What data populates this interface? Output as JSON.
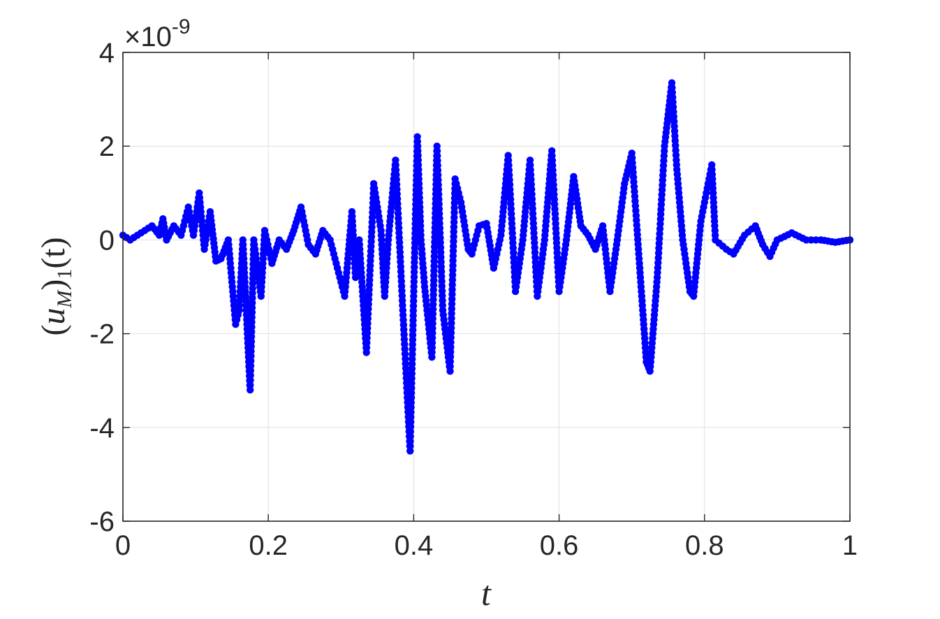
{
  "chart_data": {
    "type": "scatter",
    "xlabel": "t",
    "ylabel": "(u_M)_1(t)",
    "ylabel_parts": {
      "open": "(",
      "var": "u",
      "sub": "M",
      "close": ")",
      "sub2": "1",
      "arg": "(t)"
    },
    "exponent_label": {
      "times": "×",
      "base": "10",
      "power": "-9"
    },
    "xlim": [
      0,
      1
    ],
    "ylim": [
      -6,
      4
    ],
    "x_ticks": [
      0,
      0.2,
      0.4,
      0.6,
      0.8,
      1
    ],
    "x_tick_labels": [
      "0",
      "0.2",
      "0.4",
      "0.6",
      "0.8",
      "1"
    ],
    "y_ticks": [
      -6,
      -4,
      -2,
      0,
      2,
      4
    ],
    "y_tick_labels": [
      "-6",
      "-4",
      "-2",
      "0",
      "2",
      "4"
    ],
    "grid": true,
    "marker_color": "#0000ff",
    "series": [
      {
        "anchors": [
          [
            0.0,
            0.1
          ],
          [
            0.01,
            0.0
          ],
          [
            0.02,
            0.1
          ],
          [
            0.03,
            0.2
          ],
          [
            0.04,
            0.3
          ],
          [
            0.05,
            0.1
          ],
          [
            0.055,
            0.45
          ],
          [
            0.06,
            0.0
          ],
          [
            0.07,
            0.3
          ],
          [
            0.08,
            0.1
          ],
          [
            0.09,
            0.7
          ],
          [
            0.097,
            0.1
          ],
          [
            0.105,
            1.0
          ],
          [
            0.112,
            -0.2
          ],
          [
            0.12,
            0.6
          ],
          [
            0.128,
            -0.45
          ],
          [
            0.135,
            -0.4
          ],
          [
            0.145,
            0.0
          ],
          [
            0.155,
            -1.8
          ],
          [
            0.16,
            -1.5
          ],
          [
            0.165,
            0.0
          ],
          [
            0.17,
            -1.6
          ],
          [
            0.175,
            -3.2
          ],
          [
            0.18,
            0.0
          ],
          [
            0.19,
            -1.2
          ],
          [
            0.195,
            0.2
          ],
          [
            0.205,
            -0.5
          ],
          [
            0.215,
            0.0
          ],
          [
            0.225,
            -0.2
          ],
          [
            0.235,
            0.2
          ],
          [
            0.245,
            0.7
          ],
          [
            0.255,
            -0.1
          ],
          [
            0.265,
            -0.3
          ],
          [
            0.275,
            0.2
          ],
          [
            0.285,
            0.0
          ],
          [
            0.295,
            -0.6
          ],
          [
            0.305,
            -1.2
          ],
          [
            0.315,
            0.6
          ],
          [
            0.32,
            -0.8
          ],
          [
            0.325,
            0.0
          ],
          [
            0.335,
            -2.4
          ],
          [
            0.345,
            1.2
          ],
          [
            0.355,
            0.2
          ],
          [
            0.36,
            -1.2
          ],
          [
            0.365,
            0.0
          ],
          [
            0.375,
            1.7
          ],
          [
            0.385,
            -1.5
          ],
          [
            0.395,
            -4.5
          ],
          [
            0.405,
            2.2
          ],
          [
            0.41,
            0.0
          ],
          [
            0.415,
            -1.0
          ],
          [
            0.425,
            -2.5
          ],
          [
            0.432,
            2.0
          ],
          [
            0.44,
            -1.5
          ],
          [
            0.45,
            -2.8
          ],
          [
            0.457,
            1.3
          ],
          [
            0.465,
            0.8
          ],
          [
            0.475,
            -0.2
          ],
          [
            0.48,
            -0.3
          ],
          [
            0.49,
            0.3
          ],
          [
            0.5,
            0.35
          ],
          [
            0.51,
            -0.6
          ],
          [
            0.52,
            0.1
          ],
          [
            0.53,
            1.8
          ],
          [
            0.54,
            -1.1
          ],
          [
            0.55,
            0.0
          ],
          [
            0.56,
            1.7
          ],
          [
            0.57,
            -1.2
          ],
          [
            0.58,
            0.0
          ],
          [
            0.59,
            1.9
          ],
          [
            0.6,
            -1.1
          ],
          [
            0.61,
            0.0
          ],
          [
            0.62,
            1.35
          ],
          [
            0.63,
            0.3
          ],
          [
            0.64,
            0.1
          ],
          [
            0.65,
            -0.2
          ],
          [
            0.66,
            0.3
          ],
          [
            0.67,
            -1.1
          ],
          [
            0.68,
            0.0
          ],
          [
            0.69,
            1.2
          ],
          [
            0.7,
            1.85
          ],
          [
            0.71,
            -0.4
          ],
          [
            0.72,
            -2.6
          ],
          [
            0.725,
            -2.8
          ],
          [
            0.735,
            -0.8
          ],
          [
            0.745,
            2.0
          ],
          [
            0.755,
            3.35
          ],
          [
            0.762,
            1.5
          ],
          [
            0.77,
            0.0
          ],
          [
            0.78,
            -1.1
          ],
          [
            0.785,
            -1.2
          ],
          [
            0.795,
            0.4
          ],
          [
            0.81,
            1.6
          ],
          [
            0.815,
            0.0
          ],
          [
            0.83,
            -0.2
          ],
          [
            0.84,
            -0.3
          ],
          [
            0.855,
            0.1
          ],
          [
            0.87,
            0.3
          ],
          [
            0.88,
            -0.1
          ],
          [
            0.89,
            -0.35
          ],
          [
            0.9,
            0.0
          ],
          [
            0.92,
            0.15
          ],
          [
            0.94,
            0.0
          ],
          [
            0.96,
            0.0
          ],
          [
            0.98,
            -0.05
          ],
          [
            1.0,
            0.0
          ]
        ]
      }
    ]
  }
}
